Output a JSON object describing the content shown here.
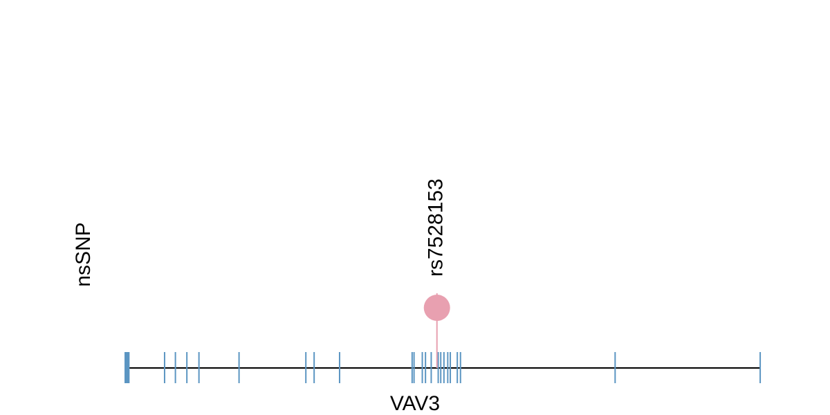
{
  "chart_data": {
    "type": "lollipop",
    "ylabel": "nsSNP",
    "xlabel": "VAV3",
    "xlim": [
      0,
      1000
    ],
    "exon_color": "#5b95c2",
    "exons": [
      [
        0,
        8
      ],
      [
        63,
        63
      ],
      [
        80,
        81
      ],
      [
        98,
        98
      ],
      [
        117,
        117
      ],
      [
        180,
        180
      ],
      [
        285,
        285
      ],
      [
        298,
        298
      ],
      [
        338,
        338
      ],
      [
        452,
        452
      ],
      [
        455,
        455
      ],
      [
        468,
        468
      ],
      [
        473,
        473
      ],
      [
        482,
        482
      ],
      [
        493,
        493
      ],
      [
        497,
        497
      ],
      [
        502,
        502
      ],
      [
        508,
        508
      ],
      [
        512,
        512
      ],
      [
        523,
        523
      ],
      [
        528,
        528
      ],
      [
        771,
        771
      ],
      [
        999,
        999
      ]
    ],
    "snps": [
      {
        "name": "rs7528153",
        "position": 491,
        "color": "#e8a0b0"
      }
    ]
  }
}
